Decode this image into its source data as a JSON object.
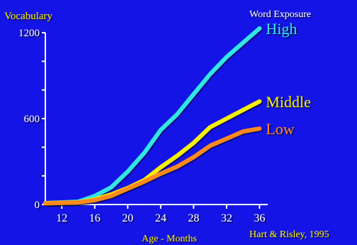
{
  "chart_data": {
    "type": "line",
    "title": "",
    "ylabel": "Vocabulary",
    "xlabel": "Age - Months",
    "legend_title": "Word Exposure",
    "source": "Hart & Risley, 1995",
    "xlim": [
      10,
      37
    ],
    "ylim": [
      0,
      1200
    ],
    "x_ticks": [
      12,
      16,
      20,
      24,
      28,
      32,
      36
    ],
    "y_tick_labels": [
      0,
      600,
      1200
    ],
    "y_minor_ticks": [
      0,
      200,
      400,
      600,
      800,
      1000,
      1200
    ],
    "legend_placement": "right, at line ends",
    "grid": false,
    "background_color": "#1414e6",
    "axis_color": "#ffffff",
    "series": [
      {
        "name": "High",
        "color": "#33e6e6",
        "x": [
          10,
          12,
          14,
          16,
          18,
          20,
          22,
          24,
          26,
          28,
          30,
          32,
          34,
          36
        ],
        "y": [
          10,
          15,
          20,
          60,
          120,
          230,
          360,
          520,
          630,
          770,
          910,
          1030,
          1130,
          1230
        ]
      },
      {
        "name": "Middle",
        "color": "#f5f000",
        "x": [
          10,
          12,
          14,
          16,
          18,
          20,
          22,
          24,
          26,
          28,
          30,
          32,
          34,
          36
        ],
        "y": [
          10,
          12,
          15,
          35,
          70,
          115,
          170,
          260,
          340,
          430,
          540,
          600,
          660,
          720
        ]
      },
      {
        "name": "Low",
        "color": "#ff8a1f",
        "x": [
          10,
          12,
          14,
          16,
          18,
          20,
          22,
          24,
          26,
          28,
          30,
          32,
          34,
          36
        ],
        "y": [
          8,
          12,
          15,
          30,
          60,
          110,
          160,
          215,
          265,
          330,
          410,
          460,
          510,
          530
        ]
      }
    ]
  }
}
